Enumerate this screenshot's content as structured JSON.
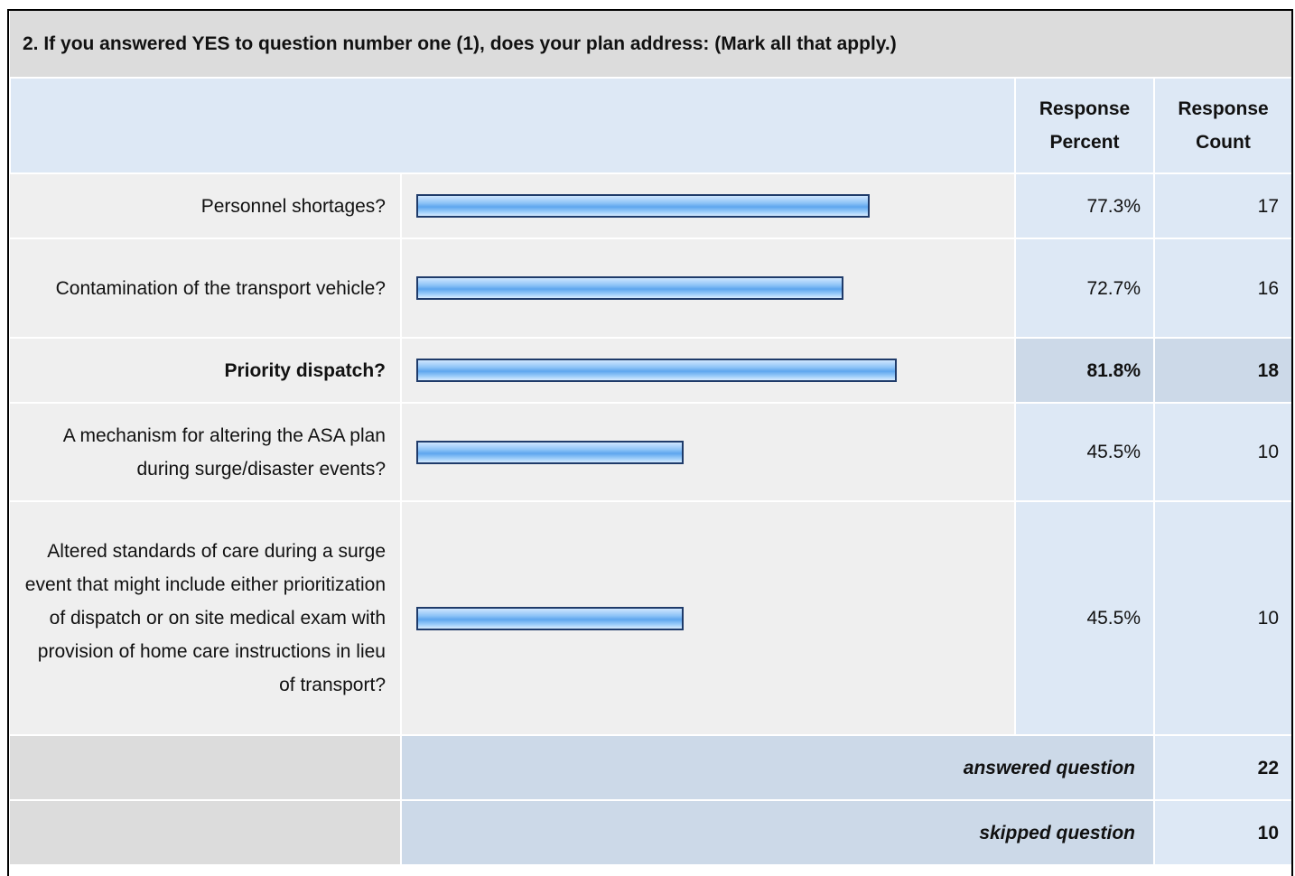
{
  "question": "2. If you answered YES to question number one (1), does your plan address: (Mark all that apply.)",
  "columns": {
    "percent": "Response Percent",
    "count": "Response Count"
  },
  "rows": [
    {
      "label": "Personnel shortages?",
      "percent": 77.3,
      "percent_label": "77.3%",
      "count": 17,
      "highlight": false
    },
    {
      "label": "Contamination of the transport vehicle?",
      "percent": 72.7,
      "percent_label": "72.7%",
      "count": 16,
      "highlight": false
    },
    {
      "label": "Priority dispatch?",
      "percent": 81.8,
      "percent_label": "81.8%",
      "count": 18,
      "highlight": true
    },
    {
      "label": "A mechanism for altering the ASA plan during surge/disaster events?",
      "percent": 45.5,
      "percent_label": "45.5%",
      "count": 10,
      "highlight": false
    },
    {
      "label": "Altered standards of care during a surge event that might include either prioritization of dispatch or on site medical exam with provision of home care instructions in lieu of transport?",
      "percent": 45.5,
      "percent_label": "45.5%",
      "count": 10,
      "highlight": false
    }
  ],
  "footer": [
    {
      "label": "answered question",
      "count": 22
    },
    {
      "label": "skipped question",
      "count": 10
    }
  ]
}
